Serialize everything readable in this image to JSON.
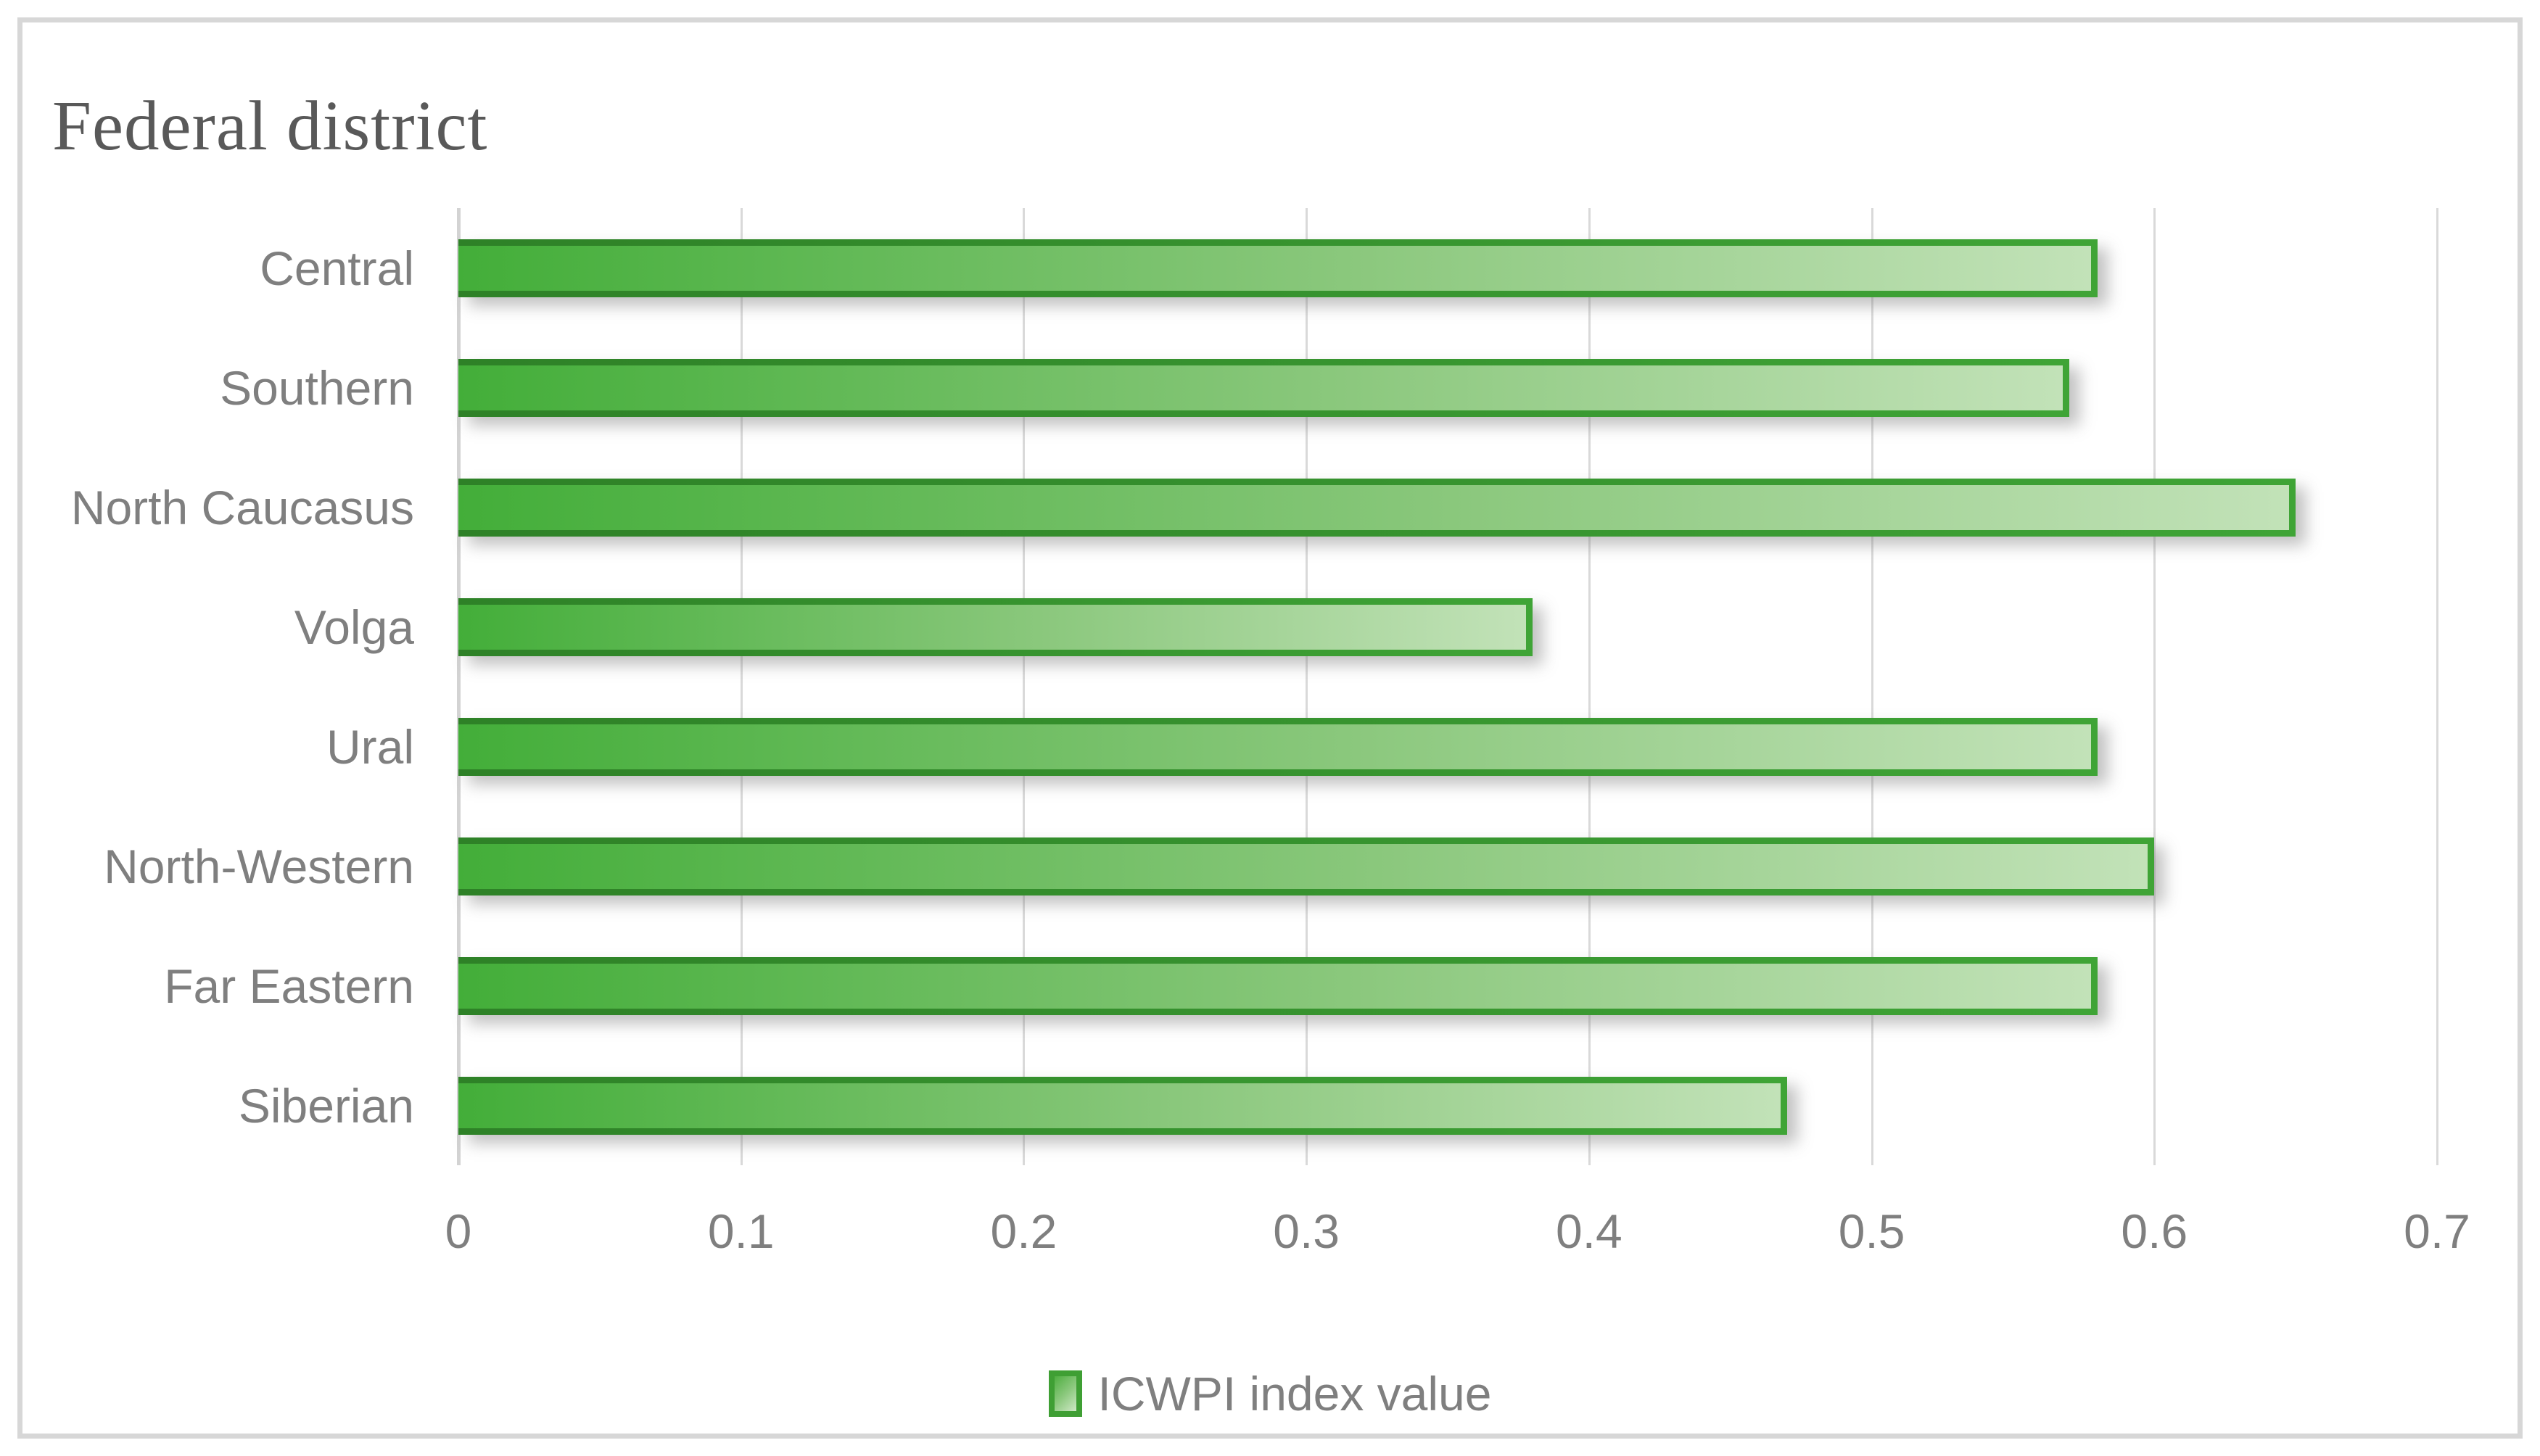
{
  "title": "Federal district",
  "legend": {
    "label": "ICWPI index value"
  },
  "chart_data": {
    "type": "bar",
    "orientation": "horizontal",
    "title": "Federal district",
    "categories": [
      "Central",
      "Southern",
      "North Caucasus",
      "Volga",
      "Ural",
      "North-Western",
      "Far Eastern",
      "Siberian"
    ],
    "series": [
      {
        "name": "ICWPI index value",
        "values": [
          0.58,
          0.57,
          0.65,
          0.38,
          0.58,
          0.6,
          0.58,
          0.47
        ]
      }
    ],
    "xlabel": "",
    "ylabel": "Federal district",
    "xlim": [
      0,
      0.7
    ],
    "x_tick_step": 0.1,
    "x_ticks": [
      "0",
      "0.1",
      "0.2",
      "0.3",
      "0.4",
      "0.5",
      "0.6",
      "0.7"
    ],
    "grid": "vertical-gridlines-on",
    "legend_position": "bottom-center"
  },
  "colors": {
    "bar_border_gradient_start": "#2e8127",
    "bar_border_gradient_end": "#3fa436",
    "bar_fill_gradient_start": "#43ae39",
    "bar_fill_gradient_end": "#c2e2b8",
    "gridline": "#d9d9d9",
    "frame_border": "#d7d7d7",
    "axis_text": "#7f7f7f",
    "title_text": "#595959"
  }
}
